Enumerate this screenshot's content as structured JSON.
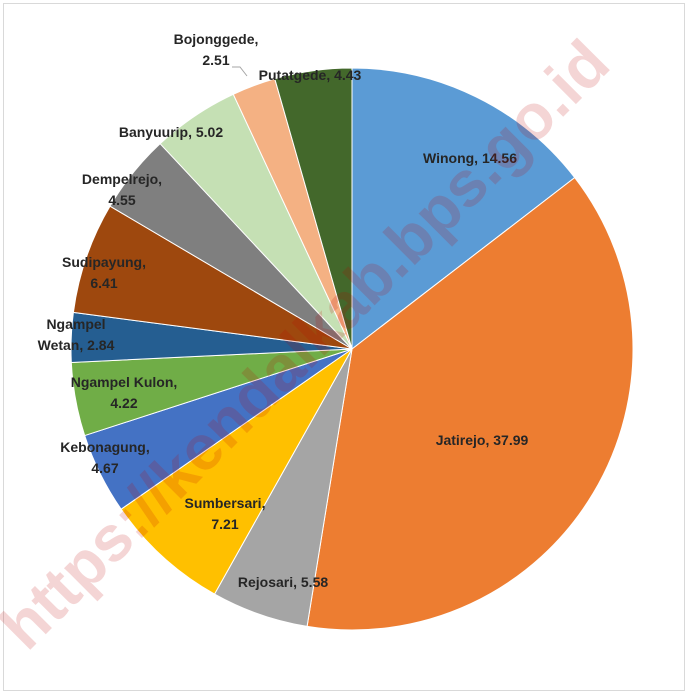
{
  "chart_data": {
    "type": "pie",
    "title": "",
    "watermark": "https://kendalkab.bps.go.id",
    "slices": [
      {
        "name": "Winong",
        "value": 14.56,
        "color": "#5b9bd5",
        "label_lines": [
          "Winong, 14.56"
        ]
      },
      {
        "name": "Jatirejo",
        "value": 37.99,
        "color": "#ed7d31",
        "label_lines": [
          "Jatirejo, 37.99"
        ]
      },
      {
        "name": "Rejosari",
        "value": 5.58,
        "color": "#a5a5a5",
        "label_lines": [
          "Rejosari, 5.58"
        ]
      },
      {
        "name": "Sumbersari",
        "value": 7.21,
        "color": "#ffc000",
        "label_lines": [
          "Sumbersari,",
          "7.21"
        ]
      },
      {
        "name": "Kebonagung",
        "value": 4.67,
        "color": "#4472c4",
        "label_lines": [
          "Kebonagung,",
          "4.67"
        ]
      },
      {
        "name": "Ngampel Kulon",
        "value": 4.22,
        "color": "#70ad47",
        "label_lines": [
          "Ngampel Kulon,",
          "4.22"
        ]
      },
      {
        "name": "Ngampel Wetan",
        "value": 2.84,
        "color": "#255e91",
        "label_lines": [
          "Ngampel",
          "Wetan, 2.84"
        ]
      },
      {
        "name": "Sudipayung",
        "value": 6.41,
        "color": "#9e480e",
        "label_lines": [
          "Sudipayung,",
          "6.41"
        ]
      },
      {
        "name": "Dempelrejo",
        "value": 4.55,
        "color": "#7f7f7f",
        "label_lines": [
          "Dempelrejo,",
          "4.55"
        ]
      },
      {
        "name": "Banyuurip",
        "value": 5.02,
        "color": "#c5e0b4",
        "label_lines": [
          "Banyuurip, 5.02"
        ]
      },
      {
        "name": "Bojonggede",
        "value": 2.51,
        "color": "#f4b183",
        "label_lines": [
          "Bojonggede,",
          "2.51"
        ]
      },
      {
        "name": "Putatgede",
        "value": 4.43,
        "color": "#43682b",
        "label_lines": [
          "Putatgede, 4.43"
        ]
      }
    ]
  }
}
